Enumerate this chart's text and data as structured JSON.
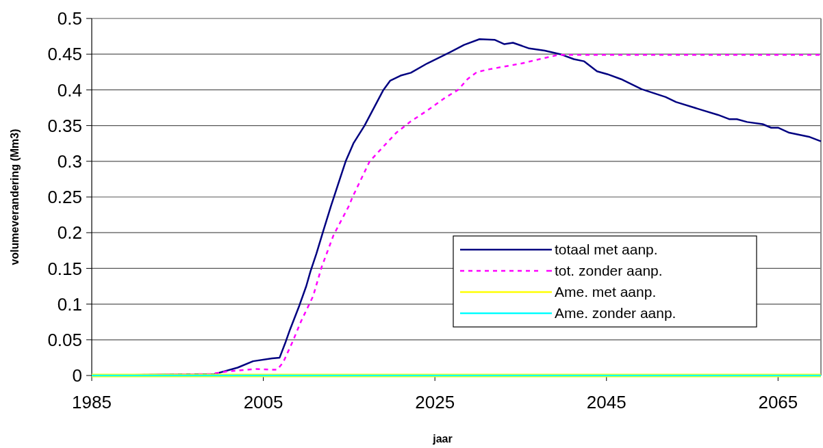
{
  "chart_data": {
    "type": "line",
    "xlabel": "jaar",
    "ylabel": "volumeverandering (Mm3)",
    "xlim": [
      1985,
      2070
    ],
    "xticks": [
      1985,
      2005,
      2025,
      2045,
      2065
    ],
    "ylim": [
      0,
      0.5
    ],
    "yticks": [
      0,
      0.05,
      0.1,
      0.15,
      0.2,
      0.25,
      0.3,
      0.35,
      0.4,
      0.45,
      0.5
    ],
    "grid": "y",
    "legend": "right",
    "marker": "none",
    "series": [
      {
        "name": "totaal met aanp.",
        "color": "#000080",
        "line_style": "solid",
        "x": [
          1985,
          1999.3,
          2002,
          2003.8,
          2006,
          2006.9,
          2007.6,
          2008.1,
          2009.2,
          2010,
          2010.5,
          2011.2,
          2012,
          2012.9,
          2014.6,
          2015.5,
          2016.8,
          2019,
          2019.8,
          2021,
          2022.2,
          2024.1,
          2026.8,
          2028.4,
          2030.2,
          2032,
          2033.1,
          2034.1,
          2036,
          2037.8,
          2039.6,
          2041.2,
          2042.4,
          2043.9,
          2045.1,
          2046.7,
          2049.1,
          2051.9,
          2053.1,
          2055.8,
          2058,
          2059.3,
          2060.2,
          2061.4,
          2063.2,
          2064.2,
          2065,
          2066.3,
          2068.7,
          2070
        ],
        "values": [
          0,
          0.002,
          0.011,
          0.02,
          0.024,
          0.025,
          0.047,
          0.064,
          0.098,
          0.125,
          0.146,
          0.171,
          0.203,
          0.238,
          0.3,
          0.325,
          0.35,
          0.4,
          0.413,
          0.42,
          0.424,
          0.437,
          0.453,
          0.463,
          0.471,
          0.47,
          0.464,
          0.466,
          0.458,
          0.455,
          0.45,
          0.443,
          0.44,
          0.426,
          0.422,
          0.415,
          0.401,
          0.39,
          0.383,
          0.373,
          0.365,
          0.359,
          0.359,
          0.355,
          0.352,
          0.347,
          0.347,
          0.34,
          0.334,
          0.328
        ]
      },
      {
        "name": "tot. zonder aanp.",
        "color": "#ff00ff",
        "line_style": "dashed",
        "x": [
          1985,
          1998.8,
          2000.9,
          2004.1,
          2006.6,
          2007.3,
          2008.4,
          2009.4,
          2010.8,
          2011.8,
          2013.2,
          2015,
          2015.4,
          2017.4,
          2020.5,
          2022.2,
          2024.1,
          2026.2,
          2027.7,
          2028.8,
          2029.9,
          2031.4,
          2035.1,
          2037.2,
          2039.4,
          2070
        ],
        "values": [
          0,
          0.002,
          0.006,
          0.009,
          0.008,
          0.018,
          0.047,
          0.076,
          0.111,
          0.152,
          0.197,
          0.238,
          0.25,
          0.3,
          0.34,
          0.356,
          0.371,
          0.389,
          0.4,
          0.415,
          0.425,
          0.429,
          0.437,
          0.443,
          0.449,
          0.449
        ]
      },
      {
        "name": "Ame. met aanp.",
        "color": "#ffff00",
        "line_style": "solid",
        "x": [
          1985,
          2070
        ],
        "values": [
          0,
          0
        ]
      },
      {
        "name": "Ame. zonder aanp.",
        "color": "#00ffff",
        "line_style": "solid",
        "x": [
          1985,
          2070
        ],
        "values": [
          0,
          0
        ]
      }
    ]
  }
}
